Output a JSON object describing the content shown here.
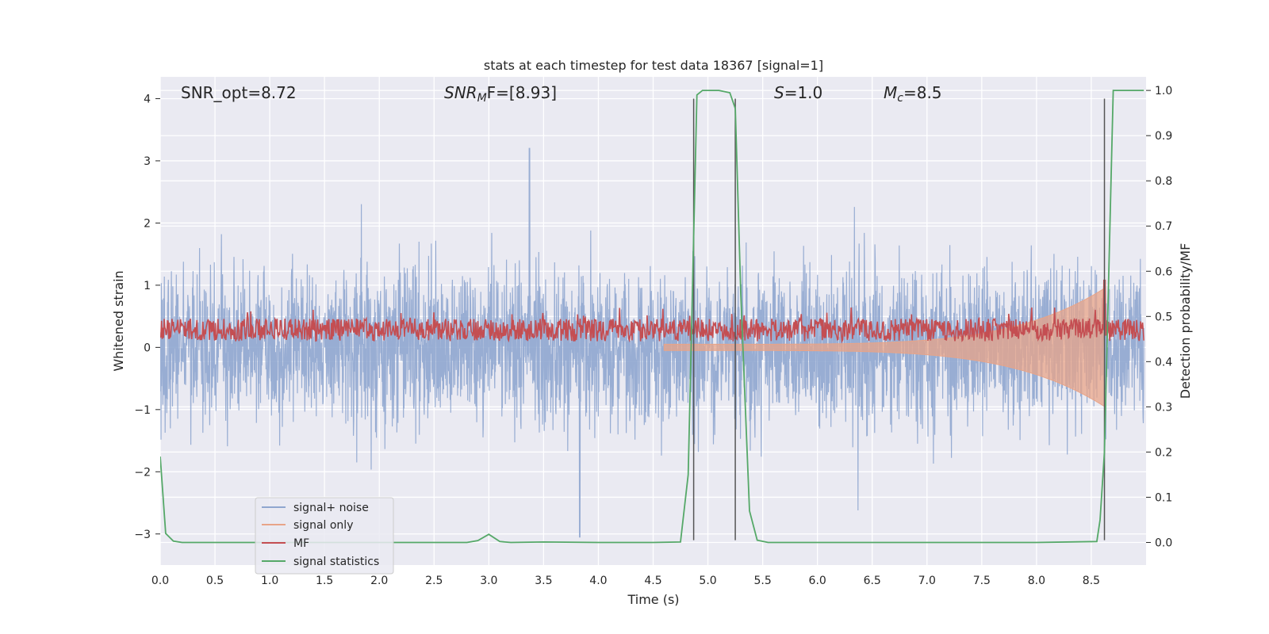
{
  "chart_data": {
    "type": "line",
    "title": "stats at each timestep for test data 18367 [signal=1]",
    "xlabel": "Time (s)",
    "ylabel": "Whitened strain",
    "ylabel_right": "Detection probability/MF",
    "xlim": [
      0.0,
      9.0
    ],
    "ylim": [
      -3.5,
      4.35
    ],
    "ylim_right": [
      -0.05,
      1.03
    ],
    "x_ticks": [
      "0.0",
      "0.5",
      "1.0",
      "1.5",
      "2.0",
      "2.5",
      "3.0",
      "3.5",
      "4.0",
      "4.5",
      "5.0",
      "5.5",
      "6.0",
      "6.5",
      "7.0",
      "7.5",
      "8.0",
      "8.5"
    ],
    "y_ticks": [
      "4",
      "3",
      "2",
      "1",
      "0",
      "−1",
      "−2",
      "−3"
    ],
    "y_ticks_right": [
      "1.0",
      "0.9",
      "0.8",
      "0.7",
      "0.6",
      "0.5",
      "0.4",
      "0.3",
      "0.2",
      "0.1",
      "0.0"
    ],
    "grid": true,
    "legend_position": "lower-left",
    "annotations": {
      "snr_opt": "SNR_opt=8.72",
      "snr_mf_sym": "SNR",
      "snr_mf_sub": "M",
      "snr_mf_tail": "F=[8.93]",
      "s_sym": "S",
      "s_tail": "=1.0",
      "mc_sym": "M",
      "mc_sub": "c",
      "mc_tail": "=8.5"
    },
    "series": [
      {
        "name": "signal+ noise",
        "color": "#8fa6cf",
        "axis": "left",
        "description_values": "noise band roughly -2.5 to 2.7, spike near t=3.37 to 4.0"
      },
      {
        "name": "signal only",
        "color": "#e8a488",
        "axis": "left",
        "chirp_end": 8.62
      },
      {
        "name": "MF",
        "color": "#c44e52",
        "axis": "right",
        "baseline": 0.47
      },
      {
        "name": "signal statistics",
        "color": "#55a868",
        "axis": "right",
        "x": [
          0.0,
          0.05,
          0.12,
          0.2,
          0.3,
          1.0,
          2.0,
          2.8,
          2.9,
          3.0,
          3.1,
          3.2,
          3.5,
          4.0,
          4.5,
          4.75,
          4.82,
          4.9,
          4.95,
          5.0,
          5.1,
          5.2,
          5.25,
          5.3,
          5.38,
          5.45,
          5.55,
          6.0,
          7.0,
          8.0,
          8.55,
          8.58,
          8.62,
          8.7,
          8.8,
          8.98
        ],
        "y": [
          0.19,
          0.02,
          0.003,
          0.0,
          0.0,
          0.0,
          0.0,
          0.0,
          0.004,
          0.018,
          0.002,
          0.0,
          0.001,
          0.0,
          0.0,
          0.001,
          0.15,
          0.99,
          1.0,
          1.0,
          1.0,
          0.995,
          0.96,
          0.55,
          0.07,
          0.005,
          0.0,
          0.0,
          0.0,
          0.0,
          0.002,
          0.05,
          0.2,
          1.0,
          1.0,
          1.0
        ]
      }
    ],
    "vertical_lines": {
      "x": [
        4.87,
        5.25,
        8.62
      ],
      "color": "#555555",
      "ymin": -3.1,
      "ymax": 4.0
    }
  }
}
